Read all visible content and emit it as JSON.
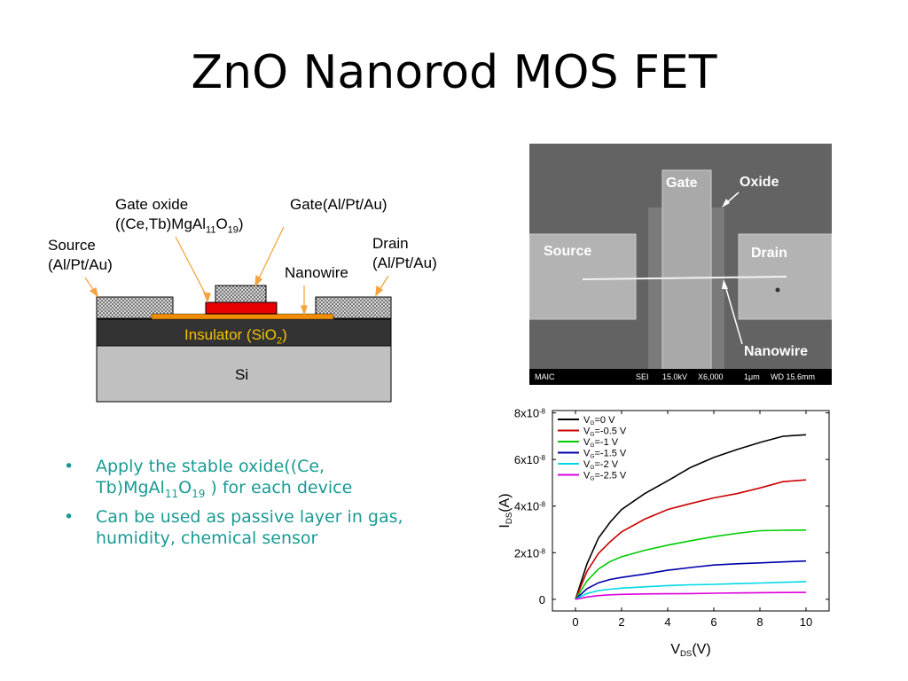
{
  "slide": {
    "title": "ZnO Nanorod MOS FET"
  },
  "schematic": {
    "gate_oxide_line1": "Gate oxide",
    "gate_oxide_line2_pre": "((Ce,Tb)MgAl",
    "gate_oxide_sub1": "11",
    "gate_oxide_mid": "O",
    "gate_oxide_sub2": "19",
    "gate_oxide_post": ")",
    "gate": "Gate(Al/Pt/Au)",
    "source_line1": "Source",
    "source_line2": "(Al/Pt/Au)",
    "drain_line1": "Drain",
    "drain_line2": "(Al/Pt/Au)",
    "nanowire": "Nanowire",
    "insulator_pre": "Insulator (SiO",
    "insulator_sub": "2",
    "insulator_post": ")",
    "si": "Si",
    "colors": {
      "insulator_text": "#f2c200",
      "nanowire": "#f28c00",
      "gate_oxide": "#e60000",
      "substrate": "#c0c0c0",
      "insulator": "#333333"
    }
  },
  "sem": {
    "gate": "Gate",
    "oxide": "Oxide",
    "source": "Source",
    "drain": "Drain",
    "nanowire": "Nanowire",
    "bar": {
      "lab": "MAIC",
      "mode": "SEI",
      "kv": "15.0kV",
      "mag": "X6,000",
      "scale": "1μm",
      "wd": "WD 15.6mm"
    }
  },
  "bullets": [
    {
      "pre": "Apply the stable oxide((Ce, Tb)MgAl",
      "sub1": "11",
      "mid": "O",
      "sub2": "19",
      "post": " ) for each device"
    },
    {
      "text": "Can be used as passive layer in gas, humidity, chemical sensor"
    }
  ],
  "chart_data": {
    "type": "line",
    "xlabel_main": "V",
    "xlabel_sub": "DS",
    "xlabel_post": "(V)",
    "ylabel_main": "I",
    "ylabel_sub": "DS",
    "ylabel_post": "(A)",
    "xlim": [
      -1,
      11
    ],
    "ylim": [
      -5e-09,
      8.1e-08
    ],
    "x_ticks": [
      0,
      2,
      4,
      6,
      8,
      10
    ],
    "y_ticks": [
      {
        "value": 0,
        "main": "0",
        "exp": ""
      },
      {
        "value": 2e-08,
        "main": "2x10",
        "exp": "-8"
      },
      {
        "value": 4e-08,
        "main": "4x10",
        "exp": "-8"
      },
      {
        "value": 6e-08,
        "main": "6x10",
        "exp": "-8"
      },
      {
        "value": 8e-08,
        "main": "8x10",
        "exp": "-8"
      }
    ],
    "x": [
      0,
      0.5,
      1,
      1.5,
      2,
      3,
      4,
      5,
      6,
      7,
      8,
      9,
      10
    ],
    "series": [
      {
        "name": "V_G=0 V",
        "label_pre": "V",
        "label_sub": "G",
        "label_post": "=0 V",
        "color": "#000000",
        "values": [
          0,
          1.5e-08,
          2.6e-08,
          3.3e-08,
          3.9e-08,
          4.6e-08,
          5.1e-08,
          5.6e-08,
          6e-08,
          6.4e-08,
          6.8e-08,
          7.1e-08,
          7.1e-08
        ]
      },
      {
        "name": "V_G=-0.5 V",
        "label_pre": "V",
        "label_sub": "G",
        "label_post": "=-0.5 V",
        "color": "#cc0000",
        "values": [
          0,
          1.2e-08,
          2e-08,
          2.5e-08,
          2.9e-08,
          3.4e-08,
          3.8e-08,
          4.1e-08,
          4.4e-08,
          4.6e-08,
          4.8e-08,
          5e-08,
          5.05e-08
        ]
      },
      {
        "name": "V_G=-1 V",
        "label_pre": "V",
        "label_sub": "G",
        "label_post": "=-1 V",
        "color": "#00cc00",
        "values": [
          0,
          8e-09,
          1.3e-08,
          1.6e-08,
          1.8e-08,
          2.1e-08,
          2.35e-08,
          2.55e-08,
          2.7e-08,
          2.8e-08,
          2.9e-08,
          2.95e-08,
          3e-08
        ]
      },
      {
        "name": "V_G=-1.5 V",
        "label_pre": "V",
        "label_sub": "G",
        "label_post": "=-1.5 V",
        "color": "#0000aa",
        "values": [
          0,
          4.5e-09,
          7e-09,
          8.5e-09,
          9.5e-09,
          1.1e-08,
          1.25e-08,
          1.35e-08,
          1.45e-08,
          1.52e-08,
          1.58e-08,
          1.63e-08,
          1.65e-08
        ]
      },
      {
        "name": "V_G=-2 V",
        "label_pre": "V",
        "label_sub": "G",
        "label_post": "=-2 V",
        "color": "#00d8e8",
        "values": [
          0,
          2.5e-09,
          3.8e-09,
          4.4e-09,
          4.8e-09,
          5.3e-09,
          5.8e-09,
          6.2e-09,
          6.5e-09,
          6.8e-09,
          7e-09,
          7.2e-09,
          7.5e-09
        ]
      },
      {
        "name": "V_G=-2.5 V",
        "label_pre": "V",
        "label_sub": "G",
        "label_post": "=-2.5 V",
        "color": "#dd00dd",
        "values": [
          0,
          1e-09,
          1.6e-09,
          1.9e-09,
          2.1e-09,
          2.3e-09,
          2.4e-09,
          2.5e-09,
          2.6e-09,
          2.7e-09,
          2.8e-09,
          2.9e-09,
          3e-09
        ]
      }
    ],
    "legend": "top-left",
    "grid": false
  }
}
